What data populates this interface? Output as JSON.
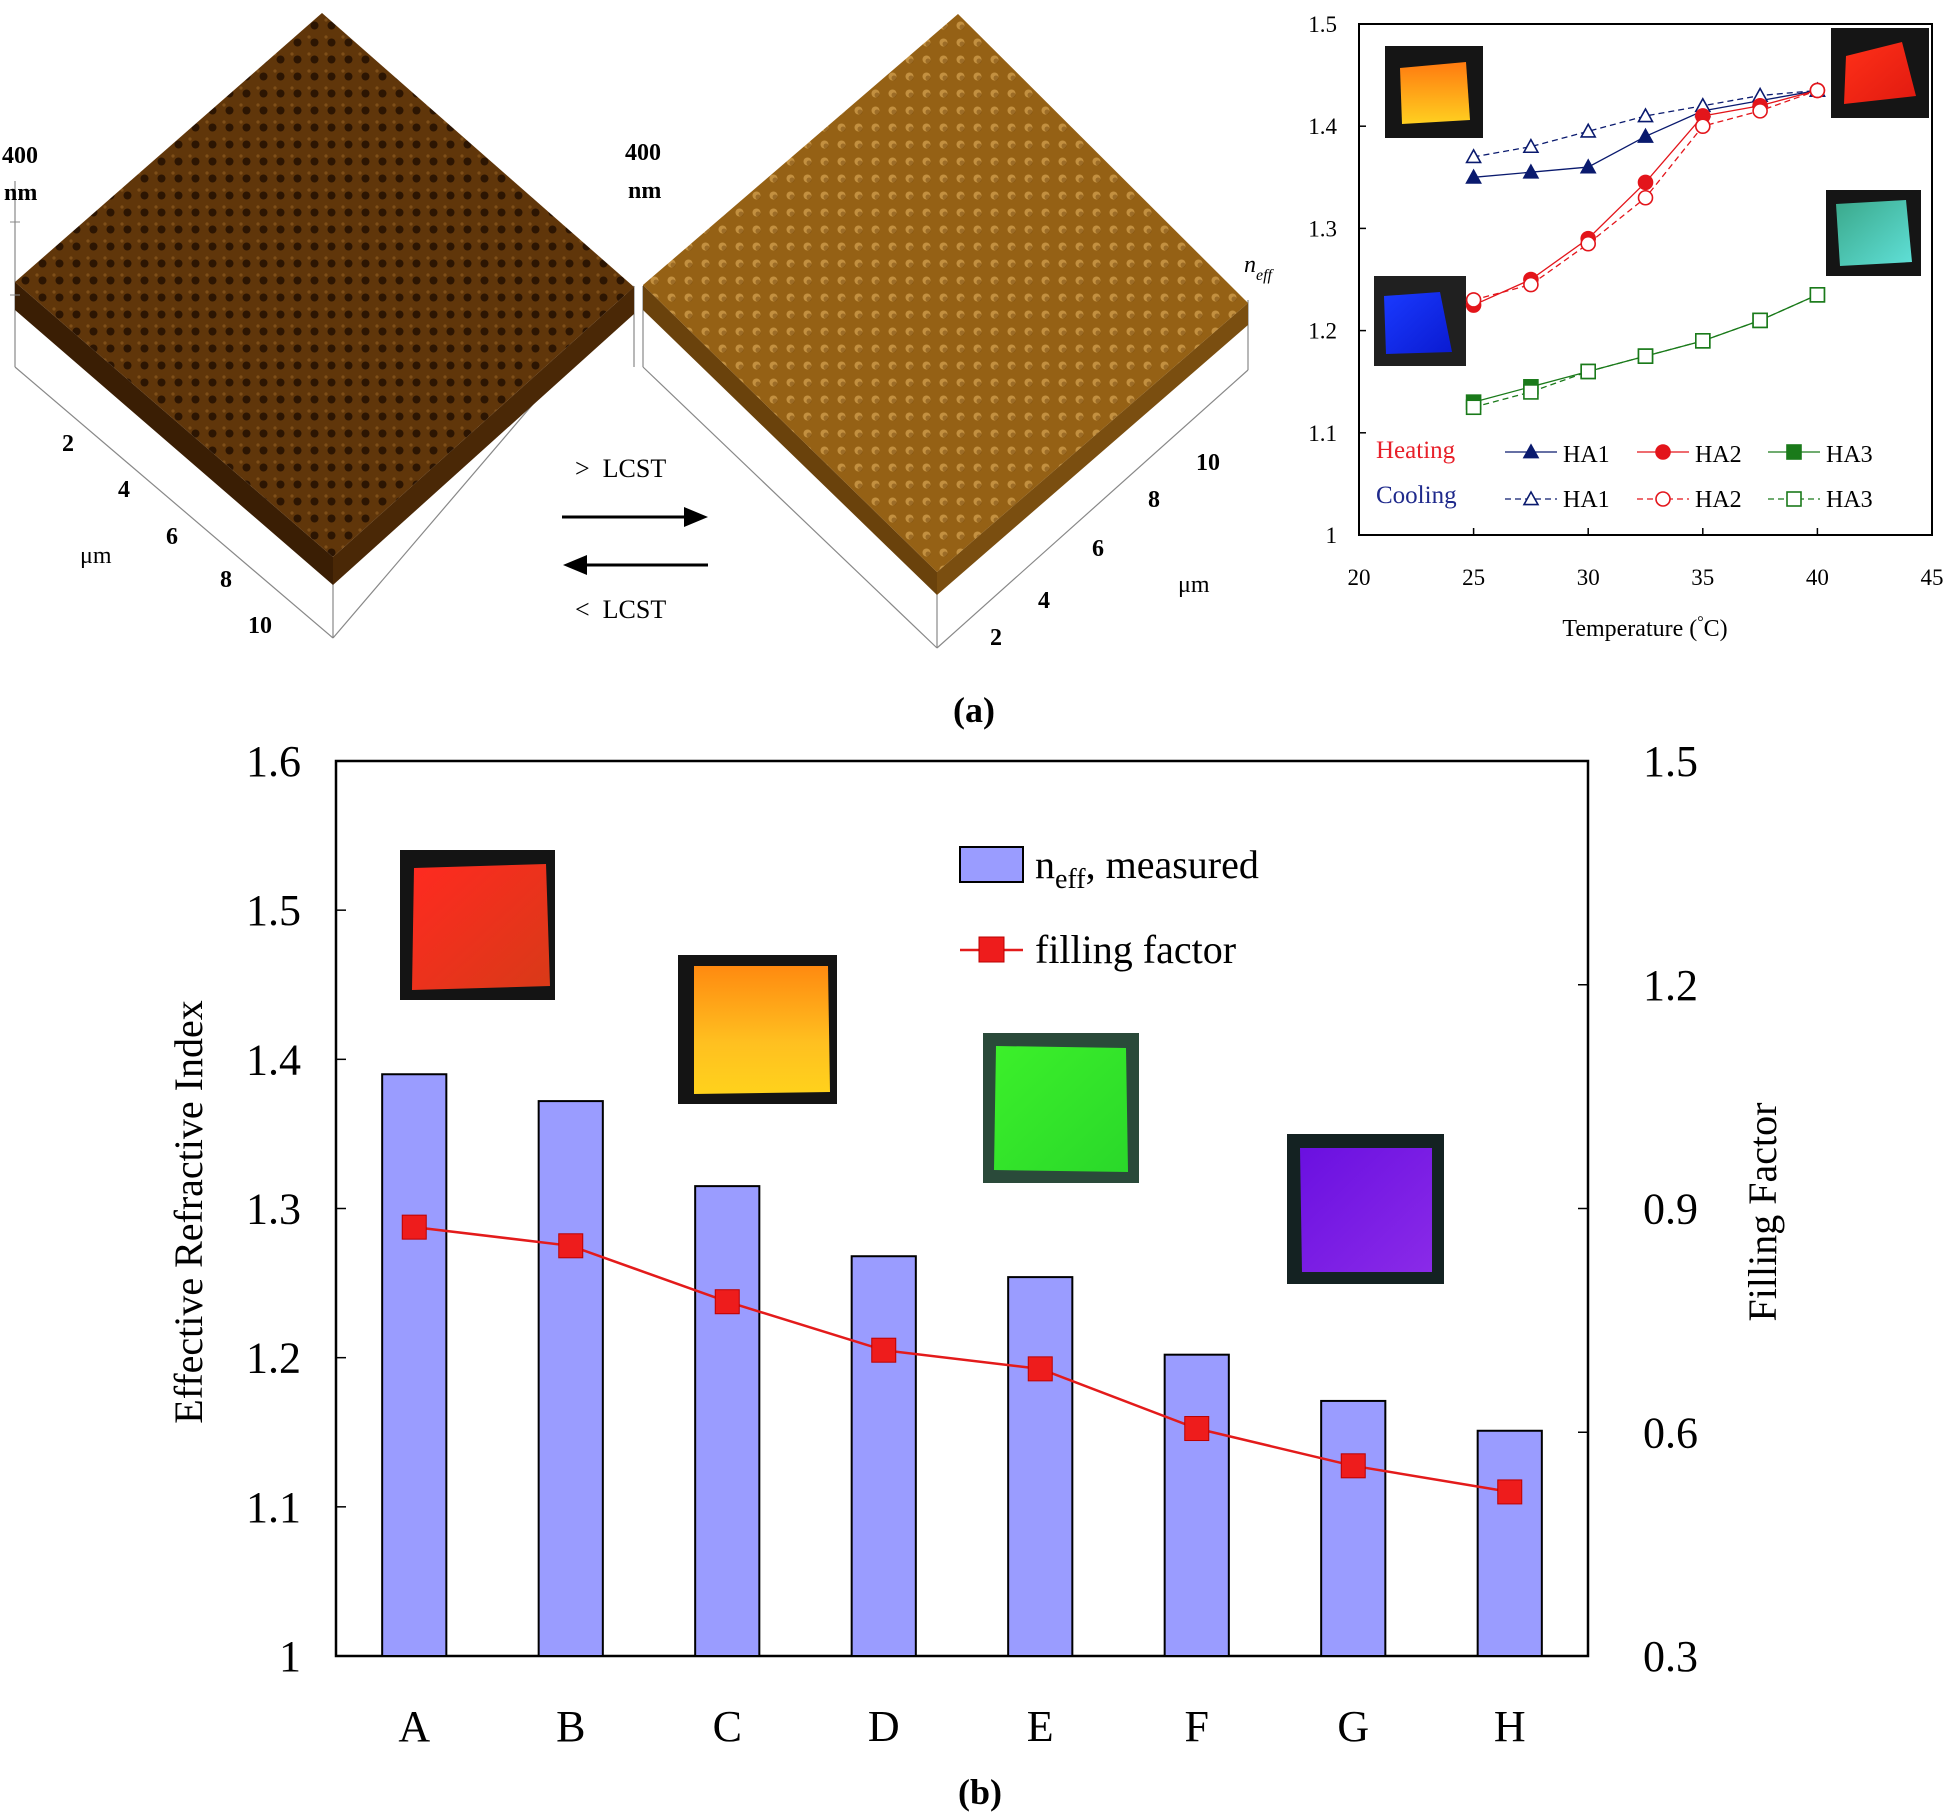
{
  "colors": {
    "heating": "#e8202a",
    "cooling": "#1f2a8c",
    "ha1": "#0a1a6e",
    "ha2": "#e3151b",
    "ha3": "#1a7a1a",
    "bar_fill": "#9a9cff",
    "bar_stroke": "#000000",
    "line": "#e31b1b",
    "afm_dark": "#5a3208",
    "afm_light": "#b07b22"
  },
  "panel_a": {
    "afm_left": {
      "z_label_value": "400",
      "z_label_unit": "nm",
      "axis_unit": "μm",
      "ticks": [
        "2",
        "4",
        "6",
        "8",
        "10"
      ]
    },
    "arrows": {
      "upper_label": ">  LCST",
      "lower_label": "<  LCST"
    },
    "afm_right": {
      "z_label_value": "400",
      "z_label_unit": "nm",
      "axis_unit": "μm",
      "ticks": [
        "2",
        "4",
        "6",
        "8",
        "10"
      ]
    },
    "caption": "(a)"
  },
  "panel_b": {
    "caption": "(b)"
  },
  "chart_data": [
    {
      "type": "line",
      "ylabel_main": "n",
      "ylabel_sub": "eff",
      "xlabel": "Temperature (°C)",
      "xlabel_pre": "Temperature (",
      "xlabel_deg": "°",
      "xlabel_post": "C)",
      "xlim": [
        20,
        45
      ],
      "ylim": [
        1,
        1.5
      ],
      "xticks": [
        "20",
        "25",
        "30",
        "35",
        "40",
        "45"
      ],
      "yticks": [
        "1",
        "1.1",
        "1.2",
        "1.3",
        "1.4",
        "1.5"
      ],
      "legend": {
        "heating": "Heating",
        "cooling": "Cooling",
        "ha1": "HA1",
        "ha2": "HA2",
        "ha3": "HA3"
      },
      "x": [
        25,
        27.5,
        30,
        32.5,
        35,
        37.5,
        40
      ],
      "series": [
        {
          "name": "HA1",
          "mode": "Heating",
          "values": [
            1.35,
            1.355,
            1.36,
            1.39,
            1.415,
            1.425,
            1.435
          ]
        },
        {
          "name": "HA1",
          "mode": "Cooling",
          "values": [
            1.37,
            1.38,
            1.395,
            1.41,
            1.42,
            1.43,
            1.435
          ]
        },
        {
          "name": "HA2",
          "mode": "Heating",
          "values": [
            1.225,
            1.25,
            1.29,
            1.345,
            1.41,
            1.42,
            1.435
          ]
        },
        {
          "name": "HA2",
          "mode": "Cooling",
          "values": [
            1.23,
            1.245,
            1.285,
            1.33,
            1.4,
            1.415,
            1.435
          ]
        },
        {
          "name": "HA3",
          "mode": "Heating",
          "values": [
            1.13,
            1.145,
            1.16,
            1.175,
            1.19,
            1.21,
            1.235
          ]
        },
        {
          "name": "HA3",
          "mode": "Cooling",
          "values": [
            1.125,
            1.14,
            1.16,
            1.175,
            1.19,
            1.21,
            1.235
          ]
        }
      ]
    },
    {
      "type": "bar",
      "ylabel": "Effective Refractive Index",
      "y2label": "Filling Factor",
      "categories": [
        "A",
        "B",
        "C",
        "D",
        "E",
        "F",
        "G",
        "H"
      ],
      "ylim": [
        1,
        1.6
      ],
      "y2lim": [
        0.3,
        1.5
      ],
      "yticks": [
        "1",
        "1.1",
        "1.2",
        "1.3",
        "1.4",
        "1.5",
        "1.6"
      ],
      "y2ticks": [
        "0.3",
        "0.6",
        "0.9",
        "1.2",
        "1.5"
      ],
      "legend": {
        "bar_main": "n",
        "bar_sub": "eff",
        "bar_rest": ", measured",
        "line": "filling factor"
      },
      "series": [
        {
          "name": "n_eff, measured",
          "kind": "bar",
          "values": [
            1.39,
            1.372,
            1.315,
            1.268,
            1.254,
            1.202,
            1.171,
            1.151
          ]
        },
        {
          "name": "filling factor",
          "kind": "line",
          "axis": "right",
          "values": [
            0.875,
            0.85,
            0.775,
            0.71,
            0.685,
            0.605,
            0.555,
            0.52
          ]
        }
      ]
    }
  ]
}
